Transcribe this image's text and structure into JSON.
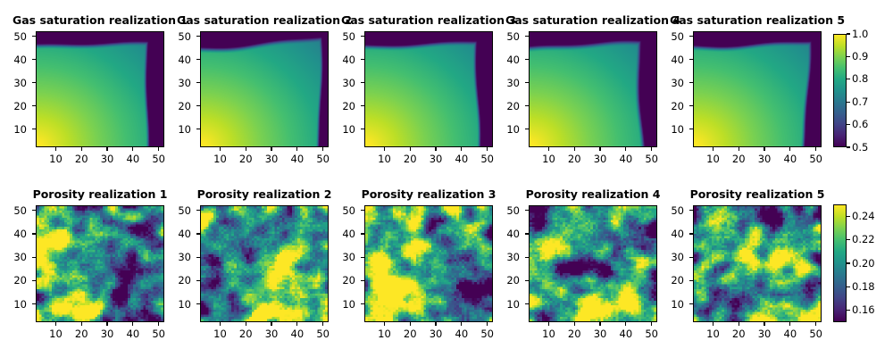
{
  "figure_background": "#ffffff",
  "text_color": "#000000",
  "colormap_name": "viridis",
  "viridis_stops": [
    "#440154",
    "#482475",
    "#414487",
    "#355f8d",
    "#2a788e",
    "#21918c",
    "#22a884",
    "#44bf70",
    "#7ad151",
    "#bddf26",
    "#fde725"
  ],
  "chart_data": [
    {
      "type": "heatmap",
      "row": "gas-saturation",
      "subplot_titles": [
        "Gas saturation realization 1",
        "Gas saturation realization 2",
        "Gas saturation realization 3",
        "Gas saturation realization 4",
        "Gas saturation realization 5"
      ],
      "grid": [
        50,
        50
      ],
      "xticks": [
        10,
        20,
        30,
        40,
        50
      ],
      "yticks": [
        10,
        20,
        30,
        40,
        50
      ],
      "colormap": "viridis",
      "colorbar": {
        "vmin": 0.5,
        "vmax": 1.0,
        "ticks": [
          {
            "v": 1.0,
            "label": "1.0"
          },
          {
            "v": 0.9,
            "label": "0.9"
          },
          {
            "v": 0.8,
            "label": "0.8"
          },
          {
            "v": 0.7,
            "label": "0.7"
          },
          {
            "v": 0.6,
            "label": "0.6"
          },
          {
            "v": 0.5,
            "label": "0.5"
          }
        ]
      },
      "pattern": "smooth field ~1.0 (yellow) at bottom-left decaying to ~0.75 (teal) toward top-right, with dark saturated bands (<=0.5) along the top edge and right edge; band edges vary per realization",
      "fields": [
        {
          "top": 46.3,
          "ts": -0.3,
          "ta1": -0.8,
          "tp1": 1.5,
          "ta2": 0.3,
          "tp2": 0.7,
          "right": 44.2,
          "rs": 0.8,
          "ra1": 0.6,
          "rp1": 2.0,
          "ra2": 0.3,
          "rp2": 1.1,
          "wt": 3.2,
          "wr": 2.0
        },
        {
          "top": 45.3,
          "ts": 2.8,
          "ta1": -1.5,
          "tp1": 1.2,
          "ta2": 0.4,
          "tp2": 2.3,
          "right": 46.3,
          "rs": 2.6,
          "ra1": 0.9,
          "rp1": 0.8,
          "ra2": 0.4,
          "rp2": 2.8,
          "wt": 3.4,
          "wr": 1.8
        },
        {
          "top": 46.0,
          "ts": 0.4,
          "ta1": -1.0,
          "tp1": 1.4,
          "ta2": 0.3,
          "tp2": 1.9,
          "right": 44.9,
          "rs": 0.6,
          "ra1": 1.0,
          "rp1": 1.7,
          "ra2": 0.3,
          "rp2": 0.5,
          "wt": 3.2,
          "wr": 2.0
        },
        {
          "top": 44.8,
          "ts": 2.2,
          "ta1": -0.6,
          "tp1": 2.5,
          "ta2": 0.4,
          "tp2": 1.0,
          "right": 45.4,
          "rs": -0.6,
          "ra1": 0.8,
          "rp1": 2.7,
          "ra2": 0.4,
          "rp2": 1.8,
          "wt": 3.6,
          "wr": 2.6
        },
        {
          "top": 45.8,
          "ts": 0.6,
          "ta1": -1.2,
          "tp1": 1.2,
          "ta2": 0.4,
          "tp2": 2.1,
          "right": 43.6,
          "rs": 3.6,
          "ra1": 0.8,
          "rp1": 0.5,
          "ra2": 0.5,
          "rp2": 2.4,
          "wt": 3.2,
          "wr": 2.2
        }
      ]
    },
    {
      "type": "heatmap",
      "row": "porosity",
      "subplot_titles": [
        "Porosity realization 1",
        "Porosity realization 2",
        "Porosity realization 3",
        "Porosity realization 4",
        "Porosity realization 5"
      ],
      "grid": [
        50,
        50
      ],
      "xticks": [
        10,
        20,
        30,
        40,
        50
      ],
      "yticks": [
        10,
        20,
        30,
        40,
        50
      ],
      "colormap": "viridis",
      "colorbar": {
        "vmin": 0.15,
        "vmax": 0.25,
        "ticks": [
          {
            "v": 0.24,
            "label": "0.24"
          },
          {
            "v": 0.22,
            "label": "0.22"
          },
          {
            "v": 0.2,
            "label": "0.20"
          },
          {
            "v": 0.18,
            "label": "0.18"
          },
          {
            "v": 0.16,
            "label": "0.16"
          }
        ]
      },
      "pattern": "grainy correlated random fields, mean ~0.20, clipped at 0.15 (dark purple) and 0.25 (yellow); each realization has distinct yellow/dark patches",
      "fields": [
        {
          "seed": 101,
          "blobs": [
            [
              6,
              40,
              8,
              2.3
            ],
            [
              15,
              4,
              7,
              2.0
            ],
            [
              21,
              47,
              4,
              1.3
            ],
            [
              40,
              12,
              9,
              -1.8
            ],
            [
              44,
              42,
              7,
              -1.2
            ],
            [
              30,
              26,
              5,
              -0.7
            ]
          ]
        },
        {
          "seed": 202,
          "blobs": [
            [
              38,
              14,
              10,
              2.6
            ],
            [
              28,
              3,
              6,
              1.6
            ],
            [
              16,
              47,
              4,
              1.4
            ],
            [
              8,
              4,
              6,
              -2.2
            ],
            [
              34,
              47,
              5,
              -1.8
            ],
            [
              7,
              24,
              6,
              -1.0
            ],
            [
              22,
              36,
              7,
              -0.9
            ]
          ]
        },
        {
          "seed": 303,
          "blobs": [
            [
              8,
              20,
              9,
              2.6
            ],
            [
              11,
              6,
              7,
              1.8
            ],
            [
              33,
              48,
              4,
              1.6
            ],
            [
              23,
              29,
              5,
              1.0
            ],
            [
              44,
              12,
              5,
              -1.6
            ],
            [
              41,
              30,
              6,
              -0.9
            ],
            [
              27,
              41,
              6,
              -0.8
            ]
          ]
        },
        {
          "seed": 404,
          "blobs": [
            [
              4,
              47,
              5,
              -2.4
            ],
            [
              44,
              38,
              6,
              -1.1
            ],
            [
              24,
              22,
              6,
              -0.9
            ],
            [
              13,
              37,
              5,
              1.9
            ],
            [
              34,
              7,
              7,
              2.0
            ],
            [
              20,
              3,
              4,
              1.3
            ],
            [
              46,
              24,
              4,
              0.9
            ]
          ]
        },
        {
          "seed": 505,
          "blobs": [
            [
              33,
              48,
              5,
              -2.3
            ],
            [
              8,
              9,
              5,
              -1.2
            ],
            [
              46,
              46,
              4,
              -1.0
            ],
            [
              19,
              29,
              6,
              1.6
            ],
            [
              42,
              23,
              4,
              1.9
            ],
            [
              10,
              44,
              4,
              1.3
            ],
            [
              30,
              13,
              5,
              1.3
            ],
            [
              48,
              3,
              4,
              0.8
            ]
          ]
        }
      ]
    }
  ]
}
